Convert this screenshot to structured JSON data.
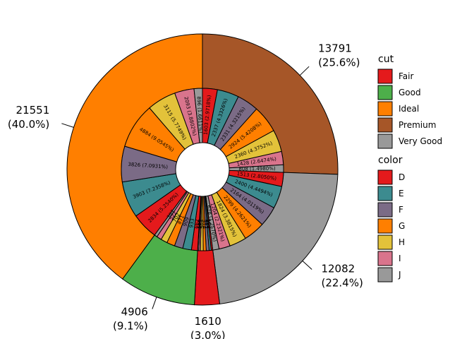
{
  "chart_data": {
    "type": "donut",
    "title": "",
    "outer_ring": {
      "variable": "cut",
      "categories": [
        "Premium",
        "Very Good",
        "Fair",
        "Good",
        "Ideal"
      ],
      "values": [
        13791,
        12082,
        1610,
        4906,
        21551
      ],
      "labels": [
        [
          "13791",
          "(25.6%)"
        ],
        [
          "12082",
          "(22.4%)"
        ],
        [
          "1610",
          "(3.0%)"
        ],
        [
          "4906",
          "(9.1%)"
        ],
        [
          "21551",
          "(40.0%)"
        ]
      ]
    },
    "inner_ring": {
      "variable": "color",
      "color_order": [
        "D",
        "E",
        "F",
        "G",
        "H",
        "I",
        "J"
      ],
      "groups": [
        {
          "cut": "Premium",
          "values": [
            1603,
            2337,
            2331,
            2924,
            2360,
            1428,
            808
          ],
          "labels": [
            "1603 (2.9718%)",
            "2337 (4.3326%)",
            "2331 (4.3215%)",
            "2924 (5.4208%)",
            "2360 (4.3752%)",
            "1428 (2.6474%)",
            "808 (1.4980%)"
          ]
        },
        {
          "cut": "Very Good",
          "values": [
            1513,
            2400,
            2164,
            2299,
            1824,
            1204,
            678
          ],
          "labels": [
            "1513 (2.8050%)",
            "2400 (4.4494%)",
            "2164 (4.0119%)",
            "2299 (4.2621%)",
            "1824 (3.3815%)",
            "1204 (2.2321%)",
            "678 (1.2570%)"
          ]
        },
        {
          "cut": "Fair",
          "values": [
            163,
            224,
            312,
            314,
            303,
            175,
            119
          ],
          "labels": [
            "163",
            "224",
            "312",
            "314",
            "303",
            "175",
            "119"
          ]
        },
        {
          "cut": "Good",
          "values": [
            662,
            933,
            909,
            871,
            702,
            522,
            307
          ],
          "labels": [
            "662",
            "933",
            "909",
            "871",
            "702",
            "522",
            "307"
          ]
        },
        {
          "cut": "Ideal",
          "values": [
            2834,
            3903,
            3826,
            4884,
            3115,
            2093,
            896
          ],
          "labels": [
            "2834 (5.2540%)",
            "3903 (7.2358%)",
            "3826 (7.0931%)",
            "4884 (9.0545%)",
            "3115 (5.7749%)",
            "2093 (3.8802%)",
            "896 (1.6611%)"
          ]
        }
      ]
    },
    "legends": [
      {
        "title": "cut",
        "entries": [
          {
            "label": "Fair",
            "color": "#e41a1c"
          },
          {
            "label": "Good",
            "color": "#4daf4a"
          },
          {
            "label": "Ideal",
            "color": "#ff7f00"
          },
          {
            "label": "Premium",
            "color": "#a65628"
          },
          {
            "label": "Very Good",
            "color": "#999999"
          }
        ]
      },
      {
        "title": "color",
        "entries": [
          {
            "label": "D",
            "color": "#e41a1c"
          },
          {
            "label": "E",
            "color": "#3c8b8f"
          },
          {
            "label": "F",
            "color": "#7b6b86"
          },
          {
            "label": "G",
            "color": "#ff7f00"
          },
          {
            "label": "H",
            "color": "#e3c23a"
          },
          {
            "label": "I",
            "color": "#d9748c"
          },
          {
            "label": "J",
            "color": "#999999"
          }
        ]
      }
    ],
    "cut_colors": {
      "Fair": "#e41a1c",
      "Good": "#4daf4a",
      "Ideal": "#ff7f00",
      "Premium": "#a65628",
      "Very Good": "#999999"
    },
    "color_colors": {
      "D": "#e41a1c",
      "E": "#3c8b8f",
      "F": "#7b6b86",
      "G": "#ff7f00",
      "H": "#e3c23a",
      "I": "#d9748c",
      "J": "#999999"
    },
    "legend_placement": "right",
    "grid": false
  }
}
